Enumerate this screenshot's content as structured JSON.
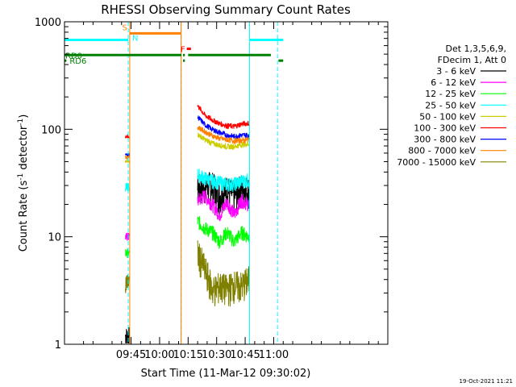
{
  "chart_data": {
    "type": "line",
    "title": "RHESSI Observing Summary Count Rates",
    "xlabel": "Start Time (11-Mar-12 09:30:02)",
    "ylabel_main": "Count Rate (s",
    "ylabel_sup1": "-1",
    "ylabel_mid": " detector",
    "ylabel_sup2": "-1",
    "ylabel_end": ")",
    "timestamp": "19-Oct-2021 11:21",
    "y_scale": "log",
    "ylim": [
      1,
      1000
    ],
    "xlim_min": [
      -35,
      135
    ],
    "x_ticks": [
      {
        "label": "09:45",
        "min": 0
      },
      {
        "label": "10:00",
        "min": 15
      },
      {
        "label": "10:15",
        "min": 30
      },
      {
        "label": "10:30",
        "min": 45
      },
      {
        "label": "10:45",
        "min": 60
      },
      {
        "label": "11:00",
        "min": 75
      }
    ],
    "y_ticks": [
      {
        "label": "1",
        "value": 1
      },
      {
        "label": "10",
        "value": 10
      },
      {
        "label": "100",
        "value": 100
      },
      {
        "label": "1000",
        "value": 1000
      }
    ],
    "legend": {
      "header1": "Det 1,3,5,6,9,",
      "header2": "FDecim 1, Att 0",
      "entries": [
        {
          "label": "3 - 6 keV",
          "color": "#000000"
        },
        {
          "label": "6 - 12 keV",
          "color": "#ff00ff"
        },
        {
          "label": "12 - 25 keV",
          "color": "#00ff00"
        },
        {
          "label": "25 - 50 keV",
          "color": "#00ffff"
        },
        {
          "label": "50 - 100 keV",
          "color": "#cccc00"
        },
        {
          "label": "100 - 300 keV",
          "color": "#ff0000"
        },
        {
          "label": "300 - 800 keV",
          "color": "#0000ff"
        },
        {
          "label": "800 - 7000 keV",
          "color": "#ff8000"
        },
        {
          "label": "7000 - 15000 keV",
          "color": "#808000"
        }
      ]
    },
    "segments": [
      {
        "start_min": -3,
        "end_min": -1
      },
      {
        "start_min": 35,
        "end_min": 62
      }
    ],
    "series": [
      {
        "name": "3 - 6 keV",
        "color": "#000000",
        "seg1": 1.2,
        "seg2": [
          28,
          30,
          30,
          24,
          28,
          24,
          29,
          27
        ]
      },
      {
        "name": "6 - 12 keV",
        "color": "#ff00ff",
        "seg1": 10,
        "seg2": [
          22,
          24,
          20,
          16,
          21,
          16,
          22,
          20
        ]
      },
      {
        "name": "12 - 25 keV",
        "color": "#00ff00",
        "seg1": 7,
        "seg2": [
          14,
          12,
          11,
          9,
          11,
          9,
          11,
          10
        ]
      },
      {
        "name": "25 - 50 keV",
        "color": "#00ffff",
        "seg1": 29,
        "seg2": [
          38,
          35,
          33,
          32,
          31,
          31,
          33,
          34
        ]
      },
      {
        "name": "50 - 100 keV",
        "color": "#cccc00",
        "seg1": 50,
        "seg2": [
          90,
          80,
          74,
          71,
          69,
          69,
          72,
          73
        ]
      },
      {
        "name": "100 - 300 keV",
        "color": "#ff0000",
        "seg1": 85,
        "seg2": [
          165,
          135,
          122,
          113,
          108,
          106,
          112,
          114
        ]
      },
      {
        "name": "300 - 800 keV",
        "color": "#0000ff",
        "seg1": 58,
        "seg2": [
          130,
          110,
          100,
          93,
          88,
          86,
          88,
          88
        ]
      },
      {
        "name": "800 - 7000 keV",
        "color": "#ff8000",
        "seg1": 55,
        "seg2": [
          105,
          95,
          87,
          82,
          80,
          78,
          79,
          80
        ]
      },
      {
        "name": "7000 - 15000 keV",
        "color": "#808000",
        "seg1": 3.8,
        "seg2": [
          7,
          5,
          3.2,
          3.5,
          3.3,
          3.6,
          3.5,
          4
        ]
      }
    ],
    "vlines": [
      {
        "min": -35.5,
        "color": "#00ffff",
        "style": "solid"
      },
      {
        "min": -1.5,
        "color": "#00ffff",
        "style": "dashed"
      },
      {
        "min": -0.7,
        "color": "#ff8000",
        "style": "solid"
      },
      {
        "min": 26.3,
        "color": "#ff8000",
        "style": "dashed"
      },
      {
        "min": 26.3,
        "color": "#ff8000",
        "style": "solid"
      },
      {
        "min": 62.3,
        "color": "#00ffff",
        "style": "solid"
      },
      {
        "min": 77.0,
        "color": "#00ffff",
        "style": "dashed"
      }
    ],
    "flags": [
      {
        "label": "",
        "color": "#00ffff",
        "y": 678,
        "start_min": -42,
        "end_min": -1.5
      },
      {
        "label": "",
        "color": "#00ffff",
        "y": 678,
        "start_min": 62.3,
        "end_min": 80
      },
      {
        "label": "S",
        "color": "#ff8000",
        "y": 780,
        "start_min": -0.7,
        "end_min": 26.3
      },
      {
        "label": "N",
        "color": "#00ffff",
        "y": 700,
        "start_min": 0.2,
        "end_min": 0.2
      },
      {
        "label": "F",
        "color": "#ff0000",
        "y": 560,
        "start_min": 29.3,
        "end_min": 31.5
      },
      {
        "label": "RD0",
        "color": "#008000",
        "y": 490,
        "start_min": -42,
        "end_min": 26.5
      },
      {
        "label": "",
        "color": "#008000",
        "y": 490,
        "start_min": 27.3,
        "end_min": 28.3
      },
      {
        "label": "",
        "color": "#008000",
        "y": 490,
        "start_min": 30.0,
        "end_min": 73.5
      },
      {
        "label": "RD6",
        "color": "#008000",
        "y": 435,
        "start_min": -42,
        "end_min": -34
      },
      {
        "label": "",
        "color": "#008000",
        "y": 435,
        "start_min": 27.3,
        "end_min": 28.3
      },
      {
        "label": "",
        "color": "#008000",
        "y": 435,
        "start_min": 77.5,
        "end_min": 80
      }
    ]
  }
}
